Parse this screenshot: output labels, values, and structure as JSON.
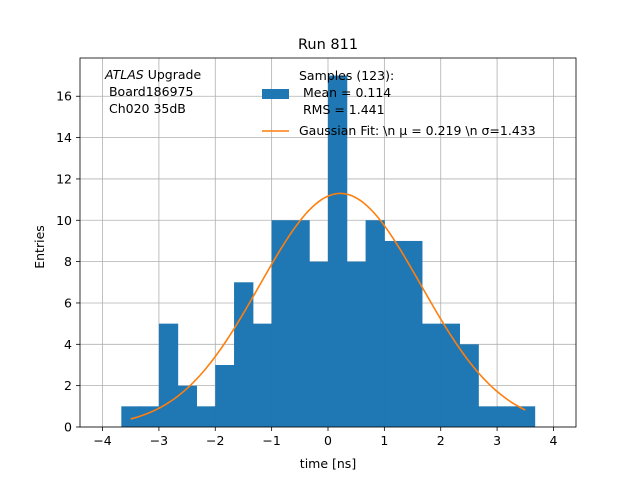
{
  "chart_data": {
    "type": "bar",
    "title": "Run 811",
    "xlabel": "time [ns]",
    "ylabel": "Entries",
    "xlim": [
      -4.4,
      4.4
    ],
    "ylim": [
      0,
      17.85
    ],
    "grid": true,
    "xticks": [
      -4,
      -3,
      -2,
      -1,
      0,
      1,
      2,
      3,
      4
    ],
    "yticks": [
      0,
      2,
      4,
      6,
      8,
      10,
      12,
      14,
      16
    ],
    "histogram": {
      "name_lines": [
        "Samples (123):",
        " Mean = 0.114",
        " RMS = 1.441"
      ],
      "color": "#1f77b4",
      "bin_edges": [
        -3.667,
        -3.333,
        -3.0,
        -2.667,
        -2.333,
        -2.0,
        -1.667,
        -1.333,
        -1.0,
        -0.667,
        -0.333,
        0.0,
        0.333,
        0.667,
        1.0,
        1.333,
        1.667,
        2.0,
        2.333,
        2.667,
        3.0,
        3.333,
        3.667
      ],
      "values": [
        1,
        1,
        5,
        2,
        1,
        3,
        7,
        5,
        10,
        10,
        8,
        17,
        8,
        10,
        9,
        9,
        5,
        5,
        4,
        1,
        1,
        1
      ]
    },
    "fit": {
      "name": "Gaussian Fit: \\n $\\mu$ = 0.219 \\n $\\sigma$=1.433",
      "name_plain": "Gaussian Fit: \\n μ = 0.219 \\n σ=1.433",
      "color": "#ff7f0e",
      "mu": 0.219,
      "sigma": 1.433,
      "amplitude": 11.3,
      "x_range": [
        -3.5,
        3.5
      ]
    },
    "annotation": {
      "italic": "ATLAS",
      "rest": " Upgrade",
      "line2": " Board186975",
      "line3": " Ch020 35dB"
    },
    "legend_placement": "top-center"
  }
}
